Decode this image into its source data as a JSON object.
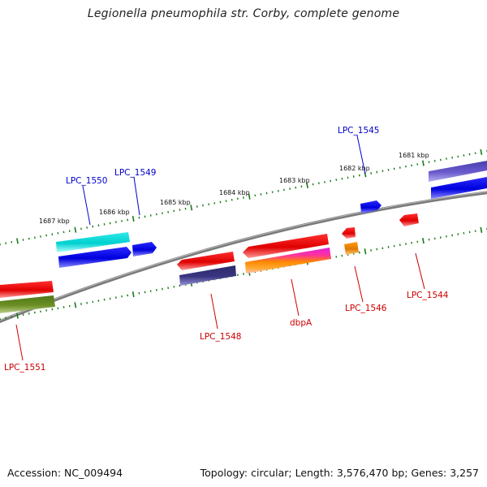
{
  "title": "Legionella pneumophila str. Corby, complete genome",
  "footer": {
    "accession": "Accession: NC_009494",
    "summary": "Topology: circular; Length: 3,576,470 bp; Genes: 3,257"
  },
  "scale": {
    "labels": [
      "1681 kbp",
      "1682 kbp",
      "1683 kbp",
      "1684 kbp",
      "1685 kbp",
      "1686 kbp",
      "1687 kbp"
    ]
  },
  "genes": [
    {
      "name": "LPC_1545",
      "strand": "forward",
      "color": "#0000cc"
    },
    {
      "name": "LPC_1549",
      "strand": "forward",
      "color": "#0000cc"
    },
    {
      "name": "LPC_1550",
      "strand": "forward",
      "color": "#0000cc"
    },
    {
      "name": "LPC_1544",
      "strand": "reverse",
      "color": "#cc0000"
    },
    {
      "name": "LPC_1546",
      "strand": "reverse",
      "color": "#cc0000"
    },
    {
      "name": "dbpA",
      "strand": "reverse",
      "color": "#cc0000"
    },
    {
      "name": "LPC_1548",
      "strand": "reverse",
      "color": "#cc0000"
    },
    {
      "name": "LPC_1551",
      "strand": "reverse",
      "color": "#cc0000"
    }
  ],
  "colors": {
    "backbone": "#808080",
    "tick": "#1a7a1a",
    "forward_label": "#0000cc",
    "reverse_label": "#cc0000"
  }
}
